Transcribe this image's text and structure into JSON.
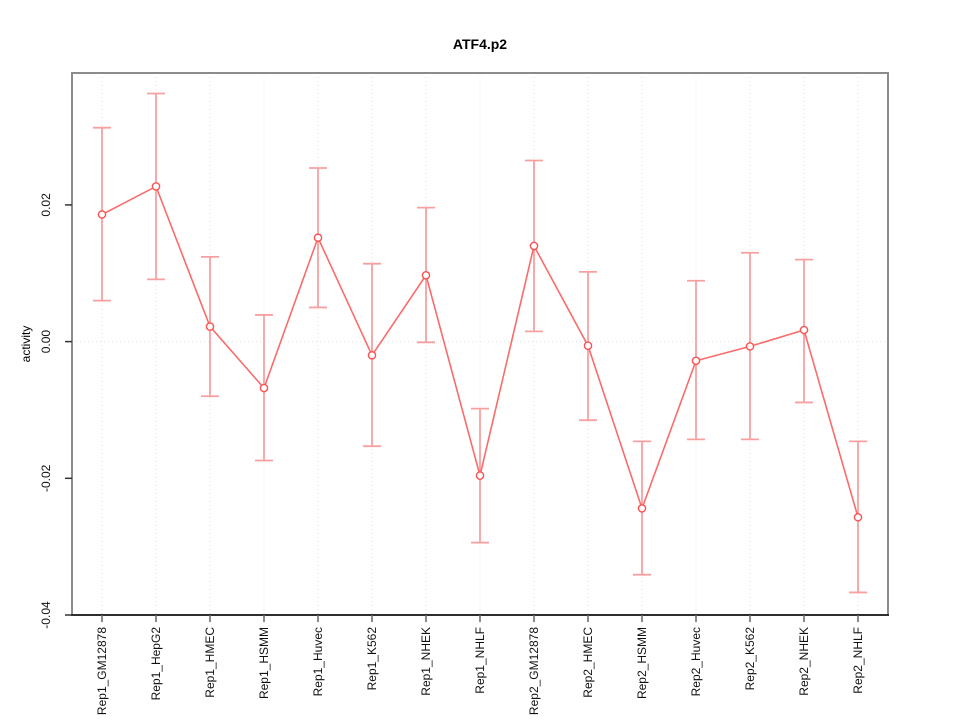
{
  "figure": {
    "background": "#ffffff"
  },
  "chart_data": {
    "type": "line",
    "title": "ATF4.p2",
    "xlabel": "",
    "ylabel": "activity",
    "categories": [
      "Rep1_GM12878",
      "Rep1_HepG2",
      "Rep1_HMEC",
      "Rep1_HSMM",
      "Rep1_Huvec",
      "Rep1_K562",
      "Rep1_NHEK",
      "Rep1_NHLF",
      "Rep2_GM12878",
      "Rep2_HMEC",
      "Rep2_HSMM",
      "Rep2_Huvec",
      "Rep2_K562",
      "Rep2_NHEK",
      "Rep2_NHLF"
    ],
    "series": [
      {
        "name": "activity",
        "values": [
          0.0186,
          0.0227,
          0.0022,
          -0.0068,
          0.0152,
          -0.002,
          0.0097,
          -0.0196,
          0.014,
          -0.0006,
          -0.0244,
          -0.0028,
          -0.0007,
          0.0017,
          -0.0257
        ],
        "ci_lower": [
          0.006,
          0.0091,
          -0.008,
          -0.0174,
          0.005,
          -0.0153,
          -0.0001,
          -0.0294,
          0.0015,
          -0.0115,
          -0.0341,
          -0.0143,
          -0.0143,
          -0.0089,
          -0.0367
        ],
        "ci_upper": [
          0.0313,
          0.0363,
          0.0124,
          0.0039,
          0.0254,
          0.0114,
          0.0196,
          -0.0098,
          0.0265,
          0.0102,
          -0.0146,
          0.0089,
          0.013,
          0.012,
          -0.0146
        ]
      }
    ],
    "yticks": [
      0.02,
      0,
      -0.02,
      -0.04
    ],
    "ytick_labels": [
      "0.02",
      "0.00",
      "-0.02",
      "-0.04"
    ],
    "ylim": [
      -0.04,
      0.0393
    ],
    "grid": {
      "vertical_per_category": true,
      "horizontal_zero_line": true,
      "style": "dotted"
    },
    "legend": {
      "visible": false
    },
    "colors": {
      "line": "#fb6b6b",
      "error_bar": "#f8a0a0",
      "point_stroke": "#fb5252",
      "point_fill": "#ffffff",
      "grid": "#e2e2e2",
      "box": "#8c8c8c",
      "axis_bottom": "#2e2e2e",
      "y_tick": "#333333",
      "x_tick": "#666666",
      "text": "#000000"
    }
  }
}
